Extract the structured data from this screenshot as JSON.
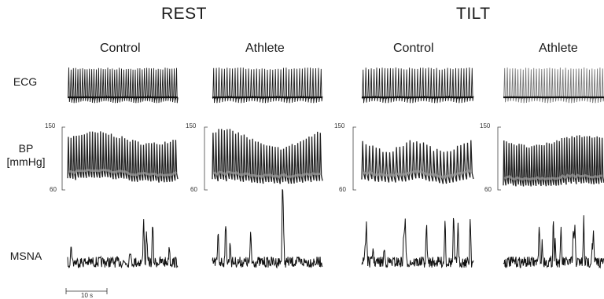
{
  "chart_data": {
    "type": "line",
    "title": "",
    "conditions": [
      {
        "label": "REST",
        "groups": [
          "Control",
          "Athlete"
        ]
      },
      {
        "label": "TILT",
        "groups": [
          "Control",
          "Athlete"
        ]
      }
    ],
    "rows": [
      {
        "id": "ecg",
        "label": "ECG",
        "unit": ""
      },
      {
        "id": "bp",
        "label": "BP",
        "unit": "[mmHg]",
        "ylim": [
          60,
          150
        ],
        "ticks": [
          150,
          60
        ]
      },
      {
        "id": "msna",
        "label": "MSNA",
        "unit": ""
      }
    ],
    "panels": [
      {
        "condition": "REST",
        "group": "Control",
        "ecg_beats": 48,
        "bp_beats": 41,
        "bp_systolic_range": [
          126,
          142
        ],
        "bp_diastolic_range": [
          86,
          92
        ]
      },
      {
        "condition": "REST",
        "group": "Athlete",
        "ecg_beats": 41,
        "bp_beats": 39,
        "bp_systolic_range": [
          120,
          146
        ],
        "bp_diastolic_range": [
          84,
          88
        ]
      },
      {
        "condition": "TILT",
        "group": "Control",
        "ecg_beats": 41,
        "bp_beats": 33,
        "bp_systolic_range": [
          115,
          130
        ],
        "bp_diastolic_range": [
          84,
          90
        ]
      },
      {
        "condition": "TILT",
        "group": "Athlete",
        "ecg_beats": 38,
        "bp_beats": 40,
        "bp_systolic_range": [
          122,
          138
        ],
        "bp_diastolic_range": [
          80,
          84
        ]
      }
    ],
    "time_scale": "10 s",
    "grid": false,
    "legend": "none"
  }
}
